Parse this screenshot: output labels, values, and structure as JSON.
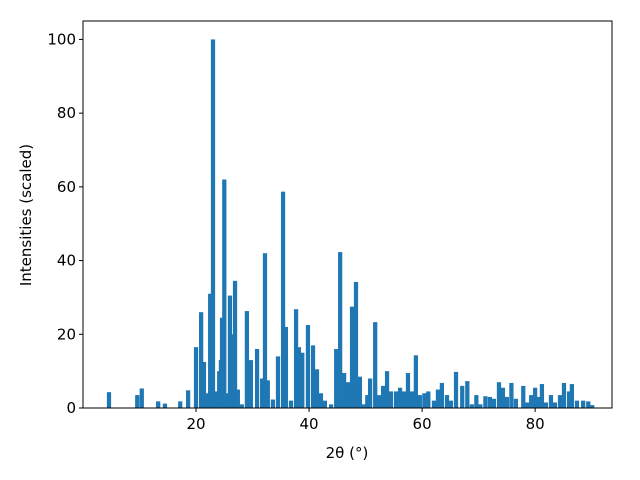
{
  "chart_data": {
    "type": "bar",
    "xlabel": "2θ (°)",
    "ylabel": "Intensities (scaled)",
    "color": "#1f77b4",
    "x": [
      4.6,
      9.6,
      10.4,
      13.3,
      14.5,
      17.2,
      18.6,
      20.0,
      20.9,
      21.4,
      21.9,
      22.5,
      23.0,
      23.5,
      24.1,
      24.4,
      24.6,
      25.0,
      25.5,
      26.0,
      26.4,
      26.9,
      27.4,
      28.1,
      29.0,
      29.7,
      30.8,
      31.7,
      32.2,
      32.7,
      33.6,
      34.5,
      35.4,
      35.9,
      36.8,
      37.7,
      38.2,
      38.8,
      39.8,
      40.7,
      41.4,
      42.1,
      42.8,
      43.9,
      44.8,
      45.5,
      46.2,
      46.9,
      47.6,
      48.3,
      49.0,
      49.7,
      50.3,
      50.8,
      51.7,
      52.4,
      53.1,
      53.8,
      54.5,
      55.4,
      56.1,
      56.8,
      57.5,
      58.2,
      58.9,
      59.6,
      60.4,
      61.1,
      62.1,
      62.8,
      63.5,
      64.4,
      65.1,
      66.0,
      67.1,
      68.0,
      68.8,
      69.6,
      70.3,
      71.2,
      72.0,
      72.7,
      73.6,
      74.3,
      75.0,
      75.8,
      76.6,
      77.9,
      78.6,
      79.3,
      80.0,
      80.5,
      81.2,
      81.9,
      82.8,
      83.5,
      84.4,
      85.1,
      86.0,
      86.5,
      87.4,
      88.5,
      89.4,
      90.1
    ],
    "values": [
      4.3,
      3.5,
      5.3,
      1.8,
      1.2,
      1.8,
      4.8,
      16.5,
      26,
      12.5,
      4,
      31,
      100,
      4.5,
      10,
      13,
      24.5,
      62,
      4,
      30.5,
      20,
      34.5,
      5,
      1,
      26.3,
      13,
      16,
      8,
      42,
      7.5,
      2.3,
      14,
      58.7,
      22,
      2,
      26.8,
      16.5,
      15,
      22.5,
      17,
      10.5,
      4,
      2,
      1,
      16,
      42.3,
      9.5,
      7,
      27.5,
      34.2,
      8.5,
      1,
      3.5,
      8,
      23.3,
      3.5,
      6,
      10,
      4.5,
      4.5,
      5.5,
      4.5,
      9.5,
      4.5,
      14.3,
      3.5,
      4,
      4.5,
      2,
      5,
      6.8,
      3.5,
      2,
      9.8,
      6,
      7.3,
      1,
      3.5,
      1,
      3.2,
      3,
      2.5,
      7,
      5.5,
      3,
      6.8,
      2.5,
      6,
      1.5,
      3.5,
      5.5,
      3,
      6.5,
      1.5,
      3.5,
      1.5,
      3.5,
      6.8,
      4.5,
      6.5,
      2,
      2,
      1.8,
      0.8
    ],
    "xlim": [
      0,
      93.6
    ],
    "ylim": [
      0,
      105
    ],
    "xticks": [
      20,
      40,
      60,
      80
    ],
    "yticks": [
      0,
      20,
      40,
      60,
      80,
      100
    ]
  }
}
